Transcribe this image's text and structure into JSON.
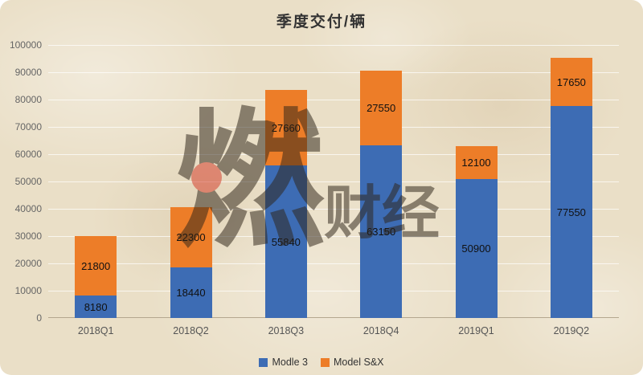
{
  "title": "季度交付/辆",
  "watermark": {
    "big": "燃",
    "small": "财经",
    "dot_color": "#d43a28"
  },
  "chart_data": {
    "type": "bar",
    "stacked": true,
    "title": "季度交付/辆",
    "xlabel": "",
    "ylabel": "",
    "categories": [
      "2018Q1",
      "2018Q2",
      "2018Q3",
      "2018Q4",
      "2019Q1",
      "2019Q2"
    ],
    "series": [
      {
        "name": "Modle 3",
        "color": "#3d6cb4",
        "values": [
          8180,
          18440,
          55840,
          63150,
          50900,
          77550
        ]
      },
      {
        "name": "Model S&X",
        "color": "#ed7d28",
        "values": [
          21800,
          22300,
          27660,
          27550,
          12100,
          17650
        ]
      }
    ],
    "ylim": [
      0,
      100000
    ],
    "ytick_step": 10000,
    "grid": true,
    "legend_position": "bottom"
  }
}
